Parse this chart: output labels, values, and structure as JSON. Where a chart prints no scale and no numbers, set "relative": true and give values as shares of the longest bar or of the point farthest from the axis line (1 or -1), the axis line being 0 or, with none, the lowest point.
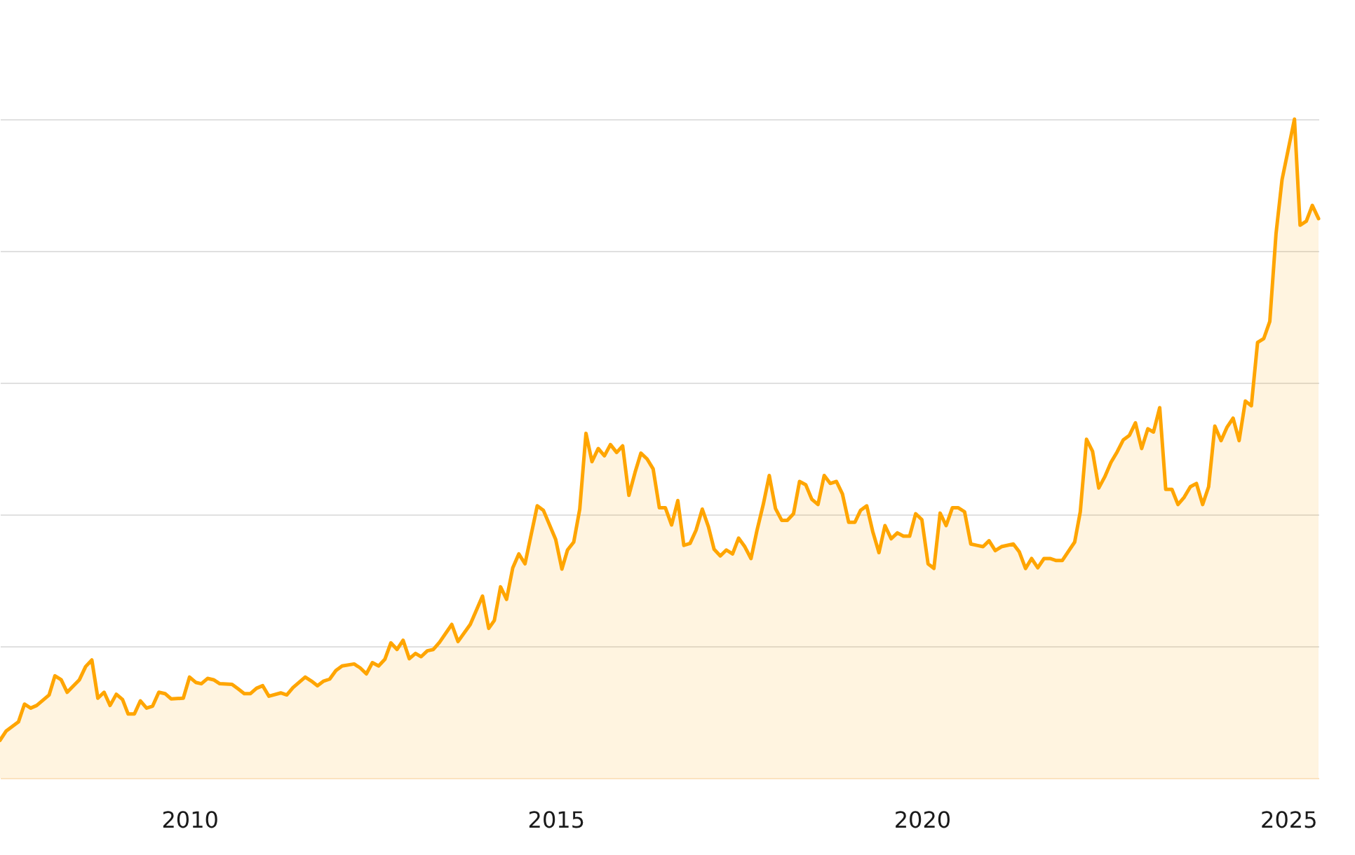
{
  "chart_data": {
    "type": "area",
    "relative": true,
    "color": "#ffa500",
    "grid": "y",
    "xlim": [
      "2007-06",
      "2025-06"
    ],
    "xticks": [
      "2010",
      "2015",
      "2020",
      "2025"
    ],
    "x": [
      "2007-06",
      "2007-07",
      "2007-09",
      "2007-10",
      "2007-11",
      "2007-12",
      "2008-02",
      "2008-03",
      "2008-04",
      "2008-05",
      "2008-07",
      "2008-08",
      "2008-09",
      "2008-10",
      "2008-11",
      "2008-12",
      "2009-01",
      "2009-02",
      "2009-03",
      "2009-04",
      "2009-05",
      "2009-06",
      "2009-07",
      "2009-08",
      "2009-09",
      "2009-10",
      "2009-12",
      "2010-01",
      "2010-02",
      "2010-03",
      "2010-04",
      "2010-05",
      "2010-06",
      "2010-08",
      "2010-09",
      "2010-10",
      "2010-11",
      "2010-12",
      "2011-01",
      "2011-02",
      "2011-04",
      "2011-05",
      "2011-06",
      "2011-08",
      "2011-09",
      "2011-10",
      "2011-11",
      "2011-12",
      "2012-01",
      "2012-02",
      "2012-04",
      "2012-05",
      "2012-06",
      "2012-07",
      "2012-08",
      "2012-09",
      "2012-10",
      "2012-11",
      "2012-12",
      "2013-01",
      "2013-02",
      "2013-03",
      "2013-04",
      "2013-05",
      "2013-06",
      "2013-08",
      "2013-09",
      "2013-11",
      "2014-01",
      "2014-02",
      "2014-03",
      "2014-04",
      "2014-05",
      "2014-06",
      "2014-07",
      "2014-08",
      "2014-10",
      "2014-11",
      "2015-01",
      "2015-02",
      "2015-03",
      "2015-04",
      "2015-05",
      "2015-06",
      "2015-07",
      "2015-08",
      "2015-09",
      "2015-10",
      "2015-11",
      "2015-12",
      "2016-01",
      "2016-02",
      "2016-03",
      "2016-04",
      "2016-05",
      "2016-06",
      "2016-07",
      "2016-08",
      "2016-09",
      "2016-10",
      "2016-11",
      "2016-12",
      "2017-01",
      "2017-02",
      "2017-03",
      "2017-04",
      "2017-05",
      "2017-06",
      "2017-07",
      "2017-08",
      "2017-09",
      "2017-10",
      "2017-11",
      "2017-12",
      "2018-01",
      "2018-02",
      "2018-03",
      "2018-04",
      "2018-05",
      "2018-06",
      "2018-07",
      "2018-08",
      "2018-09",
      "2018-10",
      "2018-11",
      "2018-12",
      "2019-01",
      "2019-02",
      "2019-03",
      "2019-04",
      "2019-05",
      "2019-06",
      "2019-07",
      "2019-08",
      "2019-09",
      "2019-10",
      "2019-11",
      "2019-12",
      "2020-01",
      "2020-02",
      "2020-03",
      "2020-04",
      "2020-05",
      "2020-06",
      "2020-07",
      "2020-08",
      "2020-09",
      "2020-10",
      "2020-11",
      "2020-12",
      "2021-01",
      "2021-02",
      "2021-04",
      "2021-05",
      "2021-06",
      "2021-07",
      "2021-08",
      "2021-09",
      "2021-10",
      "2021-11",
      "2021-12",
      "2022-01",
      "2022-02",
      "2022-03",
      "2022-04",
      "2022-05",
      "2022-06",
      "2022-07",
      "2022-08",
      "2022-09",
      "2022-10",
      "2022-11",
      "2022-12",
      "2023-01",
      "2023-02",
      "2023-03",
      "2023-04",
      "2023-05",
      "2023-06",
      "2023-07",
      "2023-08",
      "2023-09",
      "2023-10",
      "2023-11",
      "2023-12",
      "2024-01",
      "2024-02",
      "2024-03",
      "2024-04",
      "2024-05",
      "2024-06",
      "2024-07",
      "2024-08",
      "2024-09",
      "2024-10",
      "2024-11",
      "2024-12",
      "2025-01",
      "2025-02",
      "2025-03",
      "2025-04",
      "2025-05",
      "2025-06"
    ],
    "values": [
      0.057,
      0.071,
      0.085,
      0.112,
      0.106,
      0.11,
      0.126,
      0.155,
      0.149,
      0.13,
      0.149,
      0.169,
      0.179,
      0.121,
      0.13,
      0.11,
      0.127,
      0.119,
      0.097,
      0.097,
      0.117,
      0.106,
      0.109,
      0.13,
      0.128,
      0.12,
      0.121,
      0.153,
      0.145,
      0.143,
      0.151,
      0.149,
      0.143,
      0.142,
      0.135,
      0.128,
      0.128,
      0.136,
      0.14,
      0.124,
      0.129,
      0.126,
      0.137,
      0.153,
      0.147,
      0.14,
      0.147,
      0.15,
      0.163,
      0.17,
      0.173,
      0.167,
      0.158,
      0.175,
      0.17,
      0.18,
      0.205,
      0.195,
      0.209,
      0.181,
      0.189,
      0.184,
      0.193,
      0.195,
      0.206,
      0.233,
      0.207,
      0.233,
      0.276,
      0.227,
      0.239,
      0.29,
      0.271,
      0.319,
      0.34,
      0.325,
      0.413,
      0.406,
      0.362,
      0.317,
      0.346,
      0.358,
      0.408,
      0.523,
      0.48,
      0.5,
      0.489,
      0.506,
      0.494,
      0.504,
      0.429,
      0.464,
      0.493,
      0.484,
      0.469,
      0.41,
      0.41,
      0.384,
      0.421,
      0.353,
      0.356,
      0.376,
      0.408,
      0.381,
      0.347,
      0.337,
      0.346,
      0.34,
      0.364,
      0.351,
      0.333,
      0.376,
      0.415,
      0.459,
      0.409,
      0.391,
      0.391,
      0.401,
      0.45,
      0.445,
      0.423,
      0.415,
      0.459,
      0.447,
      0.45,
      0.431,
      0.388,
      0.388,
      0.406,
      0.413,
      0.374,
      0.342,
      0.383,
      0.363,
      0.372,
      0.367,
      0.367,
      0.401,
      0.392,
      0.325,
      0.318,
      0.402,
      0.383,
      0.41,
      0.41,
      0.404,
      0.355,
      0.353,
      0.351,
      0.36,
      0.345,
      0.351,
      0.355,
      0.343,
      0.318,
      0.333,
      0.319,
      0.333,
      0.333,
      0.33,
      0.33,
      0.344,
      0.358,
      0.404,
      0.514,
      0.496,
      0.44,
      0.457,
      0.479,
      0.495,
      0.513,
      0.52,
      0.539,
      0.5,
      0.53,
      0.525,
      0.562,
      0.438,
      0.438,
      0.415,
      0.426,
      0.442,
      0.447,
      0.415,
      0.442,
      0.534,
      0.512,
      0.532,
      0.546,
      0.512,
      0.572,
      0.565,
      0.661,
      0.667,
      0.693,
      0.826,
      0.908,
      0.954,
      1,
      0.839,
      0.845,
      0.869,
      0.849
    ]
  }
}
